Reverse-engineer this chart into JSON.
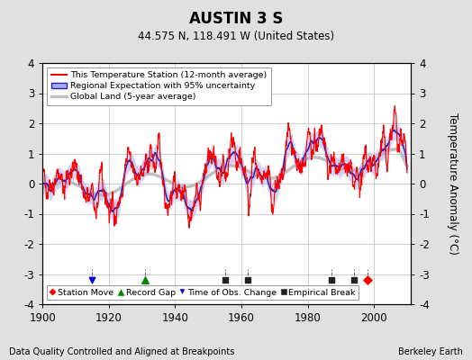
{
  "title": "AUSTIN 3 S",
  "subtitle": "44.575 N, 118.491 W (United States)",
  "xlabel_bottom": "Data Quality Controlled and Aligned at Breakpoints",
  "xlabel_right": "Berkeley Earth",
  "ylabel": "Temperature Anomaly (°C)",
  "xlim": [
    1900,
    2011
  ],
  "ylim": [
    -4,
    4
  ],
  "yticks": [
    -4,
    -3,
    -2,
    -1,
    0,
    1,
    2,
    3,
    4
  ],
  "xticks": [
    1900,
    1920,
    1940,
    1960,
    1980,
    2000
  ],
  "marker_events": {
    "station_move": {
      "x": [
        1998
      ],
      "y": [
        -3.2
      ],
      "color": "#FF0000",
      "marker": "D",
      "label": "Station Move"
    },
    "record_gap": {
      "x": [
        1931
      ],
      "y": [
        -3.2
      ],
      "color": "#008800",
      "marker": "^",
      "label": "Record Gap"
    },
    "time_obs_change": {
      "x": [
        1915
      ],
      "y": [
        -3.2
      ],
      "color": "#0000DD",
      "marker": "v",
      "label": "Time of Obs. Change"
    },
    "empirical_break": {
      "x": [
        1955,
        1962,
        1987,
        1994
      ],
      "y": [
        -3.2,
        -3.2,
        -3.2,
        -3.2
      ],
      "color": "#222222",
      "marker": "s",
      "label": "Empirical Break"
    }
  },
  "bg_color": "#E0E0E0",
  "plot_bg_color": "#FFFFFF",
  "grid_color": "#BBBBBB",
  "seed": 42
}
